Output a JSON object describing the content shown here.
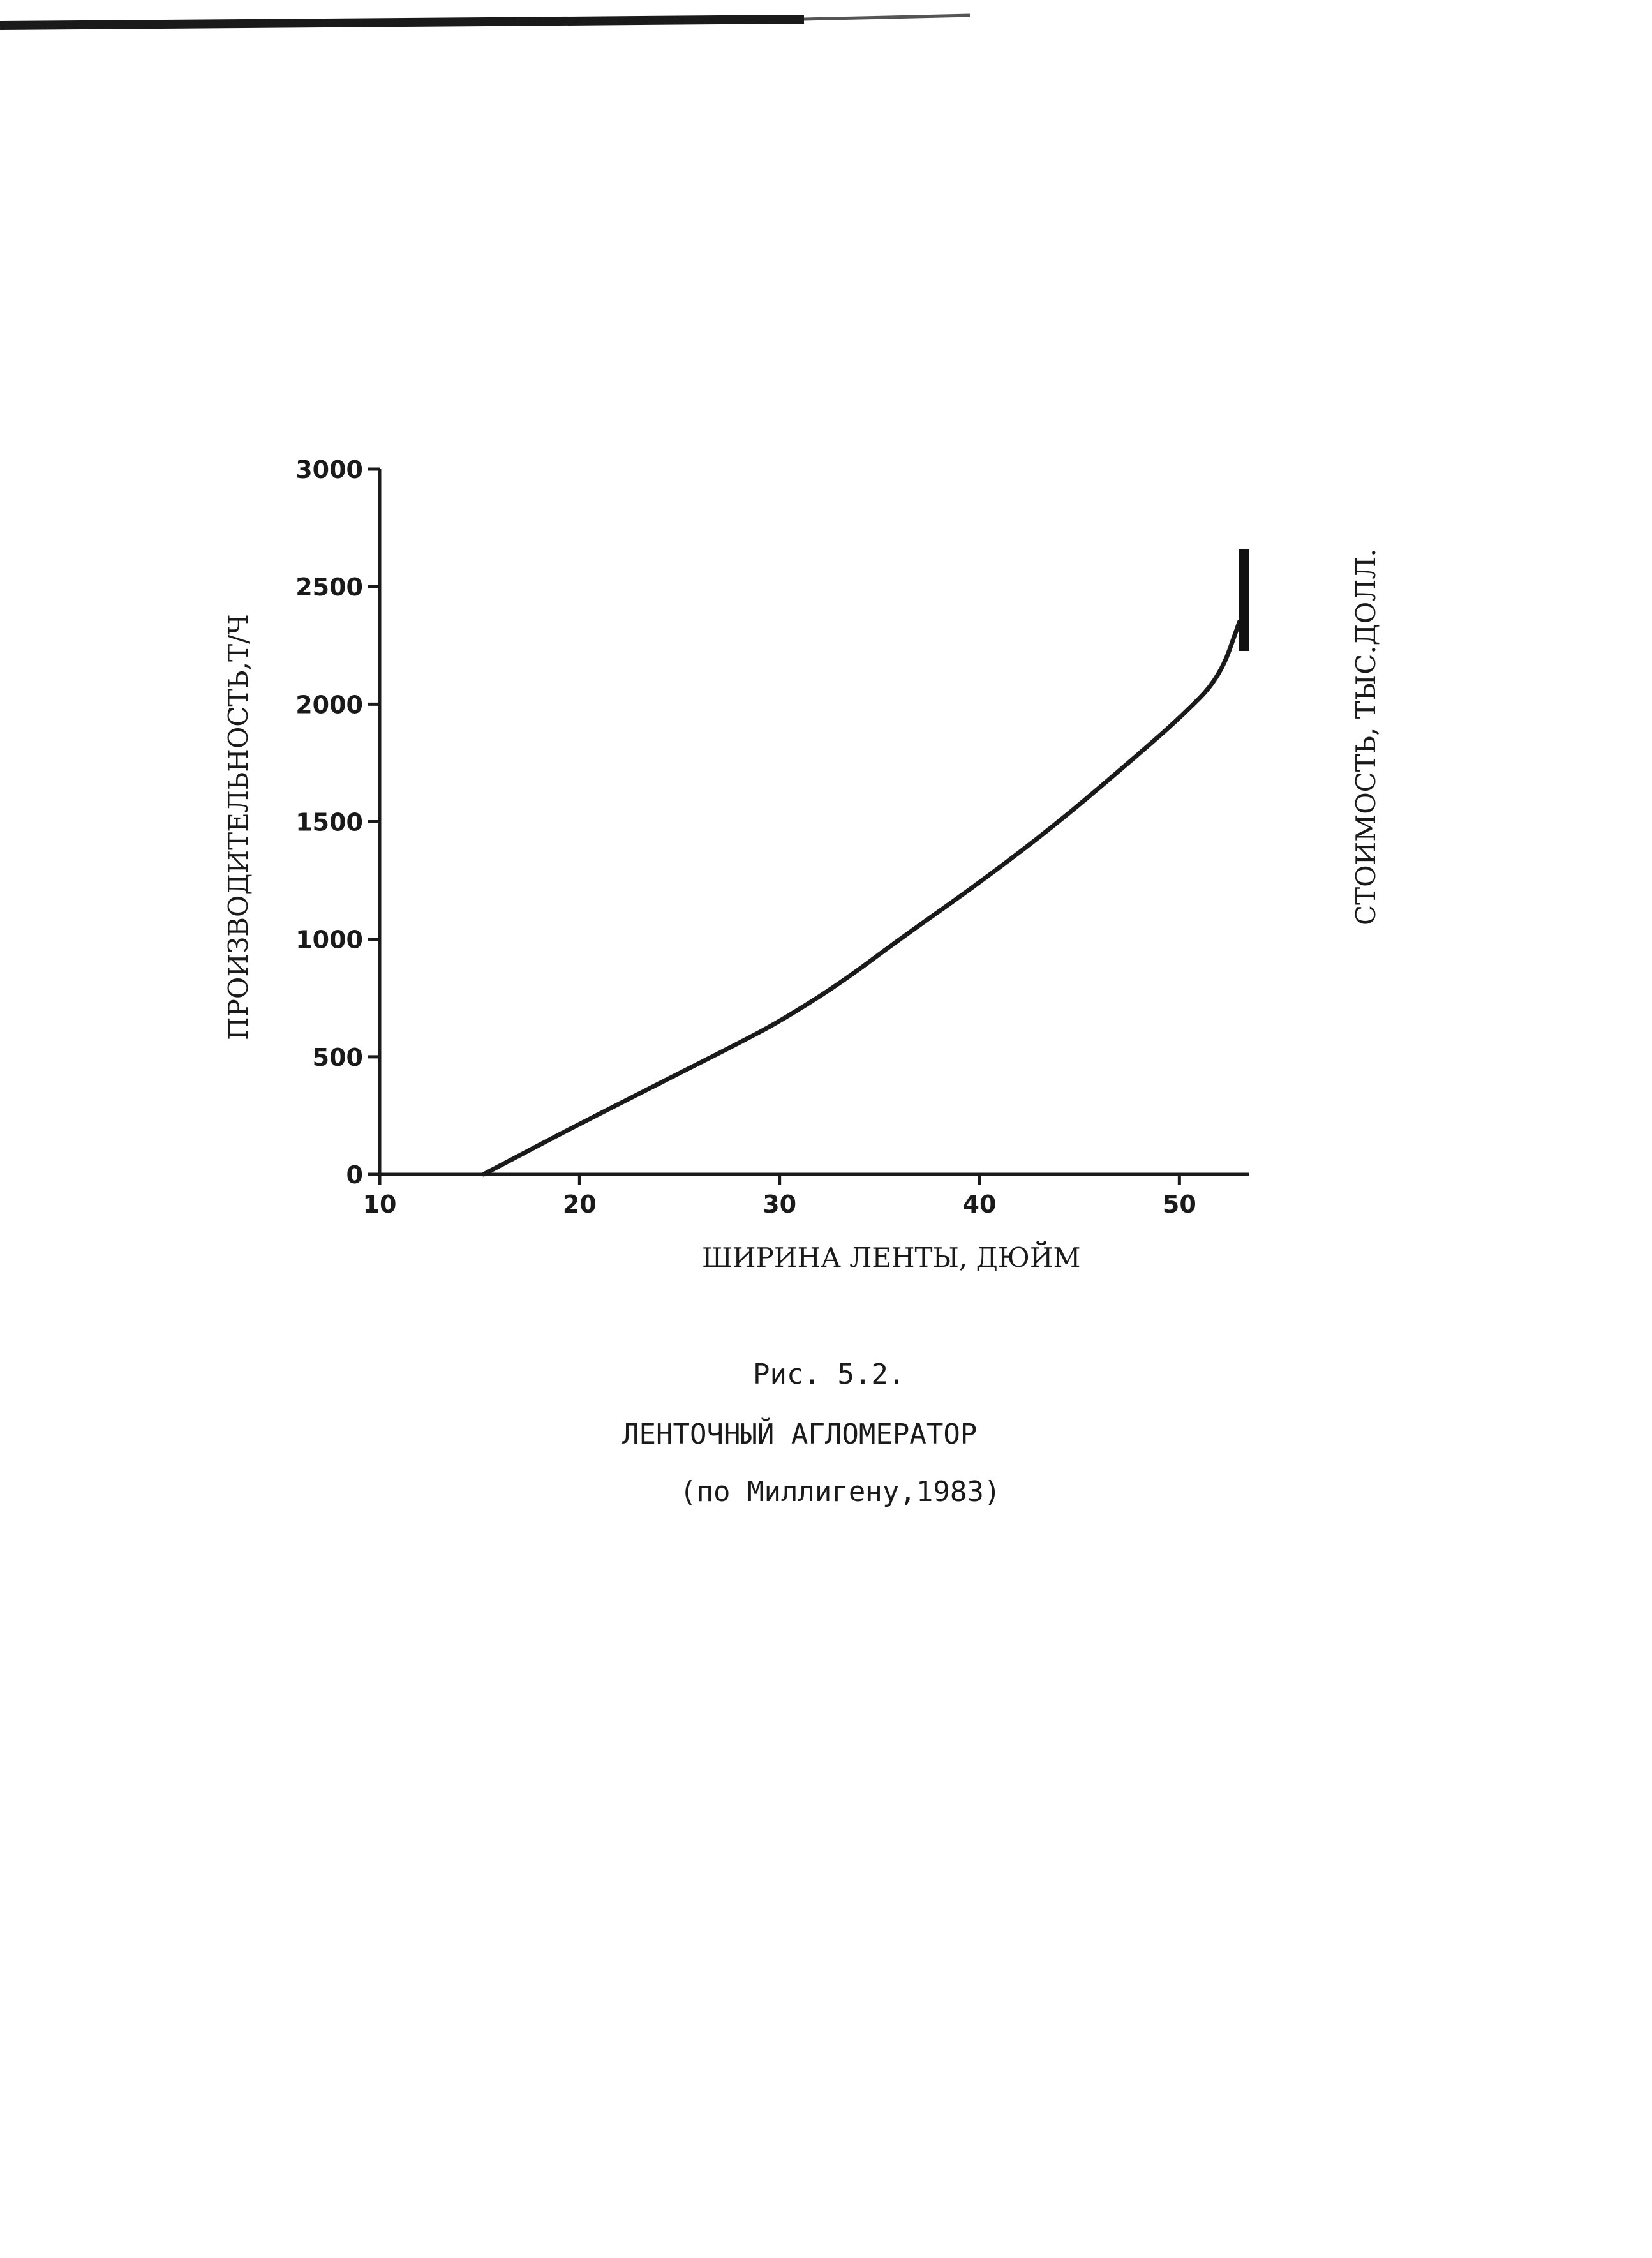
{
  "chart_data": {
    "type": "line",
    "title": "",
    "xlabel": "ШИРИНА ЛЕНТЫ, ДЮЙМ",
    "ylabel": "ПРОИЗВОДИТЕЛЬНОСТЬ,Т/Ч",
    "ylabel_right": "СТОИМОСТЬ, ТЫС.ДОЛЛ.",
    "xlim": [
      10,
      53.5
    ],
    "ylim": [
      0,
      3000
    ],
    "x_ticks": [
      "10",
      "20",
      "30",
      "40",
      "50"
    ],
    "y_ticks": [
      "0",
      "500",
      "1000",
      "1500",
      "2000",
      "2500",
      "3000"
    ],
    "grid": false,
    "legend": "none",
    "series": [
      {
        "x": [
          15.2,
          20,
          25,
          28,
          30,
          33,
          36,
          40,
          44,
          48,
          50,
          52,
          53
        ],
        "y": [
          0,
          215,
          430,
          560,
          650,
          810,
          1000,
          1240,
          1500,
          1790,
          1940,
          2110,
          2350
        ]
      }
    ]
  },
  "caption": {
    "figure": "Рис. 5.2.",
    "title": "ЛЕНТОЧНЫЙ АГЛОМЕРАТОР",
    "source": "(по Миллигену,1983)"
  },
  "colors": {
    "ink": "#1a1a1a",
    "paper": "#ffffff"
  }
}
